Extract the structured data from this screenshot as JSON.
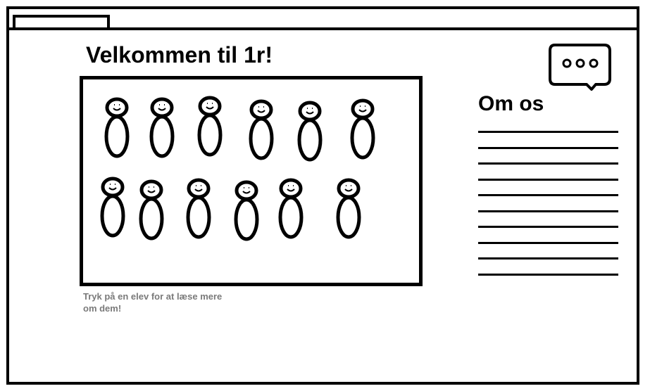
{
  "window": {
    "tab_label": ""
  },
  "main": {
    "title": "Velkommen til 1r!",
    "hint": "Tryk på en elev for at læse mere om dem!",
    "students": [
      {
        "name": "student-1"
      },
      {
        "name": "student-2"
      },
      {
        "name": "student-3"
      },
      {
        "name": "student-4"
      },
      {
        "name": "student-5"
      },
      {
        "name": "student-6"
      },
      {
        "name": "student-7"
      },
      {
        "name": "student-8"
      },
      {
        "name": "student-9"
      },
      {
        "name": "student-10"
      },
      {
        "name": "student-11"
      },
      {
        "name": "student-12"
      }
    ]
  },
  "sidebar": {
    "about_title": "Om os",
    "text_line_count": 10,
    "chat_icon": "chat-bubble-icon"
  }
}
